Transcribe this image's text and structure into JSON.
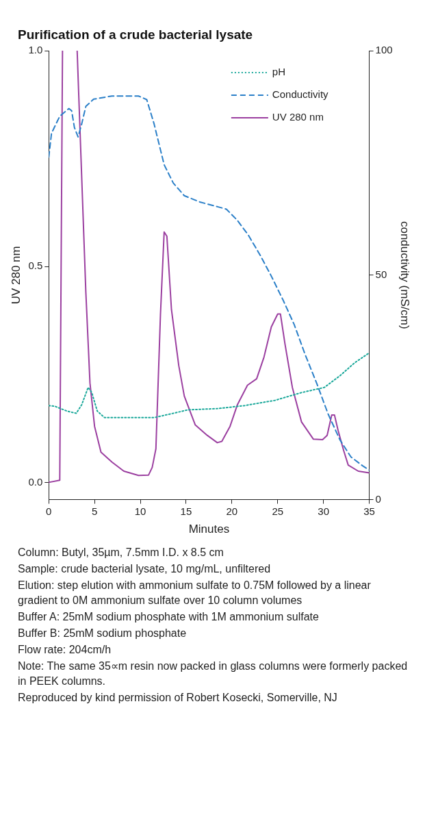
{
  "chart_data": {
    "type": "line",
    "title": "Purification of a crude bacterial lysate",
    "xlabel": "Minutes",
    "ylabel": "UV 280 nm",
    "y2label": "conductivity (mS/cm)",
    "xlim": [
      0,
      35
    ],
    "xticks": [
      0,
      5,
      10,
      15,
      20,
      25,
      30,
      35
    ],
    "ylim": [
      -0.04,
      1.0
    ],
    "yticks": [
      {
        "value": 0,
        "label": "0.0"
      },
      {
        "value": 0.5,
        "label": "0.5"
      },
      {
        "value": 1,
        "label": "1.0"
      }
    ],
    "y2lim": [
      0,
      100
    ],
    "y2ticks": [
      0,
      50,
      100
    ],
    "grid": false,
    "legend": "top right",
    "marker": "none",
    "series": [
      {
        "name": "pH",
        "color": "#1aa89a",
        "line_style": "dotted",
        "x": [
          0,
          0.7,
          2.0,
          3.0,
          3.6,
          4.3,
          4.7,
          5.3,
          6.1,
          8.6,
          11.5,
          13.6,
          15.2,
          18.5,
          21.4,
          24.7,
          27.6,
          30.1,
          31.8,
          33.4,
          35
        ],
        "values": [
          0.178,
          0.176,
          0.165,
          0.16,
          0.18,
          0.22,
          0.208,
          0.165,
          0.15,
          0.15,
          0.15,
          0.16,
          0.168,
          0.171,
          0.178,
          0.19,
          0.208,
          0.22,
          0.247,
          0.277,
          0.3
        ]
      },
      {
        "name": "Conductivity",
        "color": "#2a7fc8",
        "line_style": "dashed",
        "axis": "y2",
        "x": [
          0,
          0.3,
          1.2,
          2.2,
          2.5,
          2.8,
          3.2,
          3.6,
          4.05,
          4.9,
          6.9,
          9.8,
          10.7,
          11.5,
          12.6,
          13.6,
          14.8,
          16.5,
          18.5,
          19.4,
          20.6,
          21.8,
          23.1,
          24.3,
          25.6,
          26.8,
          28.0,
          29.3,
          30.5,
          31.8,
          33.0,
          34.3,
          35
        ],
        "values": [
          76.3,
          81.6,
          85.4,
          87.1,
          86.6,
          82.9,
          80.8,
          83.7,
          87.6,
          89.2,
          89.9,
          89.9,
          89.1,
          83.7,
          74.6,
          70.5,
          67.7,
          66.3,
          65.2,
          64.7,
          62.2,
          58.9,
          54.4,
          49.8,
          44.4,
          39,
          32.3,
          25.7,
          19.1,
          13.3,
          9.5,
          7.5,
          6.6
        ]
      },
      {
        "name": "UV 280 nm",
        "color": "#9b3fa0",
        "line_style": "solid",
        "x": [
          0,
          1.2,
          1.5,
          2.3,
          3.1,
          4.05,
          4.5,
          5.0,
          5.7,
          6.9,
          8.2,
          9.8,
          10.9,
          11.3,
          11.7,
          12.2,
          12.6,
          12.9,
          13.4,
          14.2,
          14.8,
          16.0,
          17.3,
          18.4,
          18.9,
          19.8,
          20.6,
          21.7,
          22.7,
          23.5,
          24.3,
          25.0,
          25.3,
          25.8,
          26.6,
          27.6,
          28.9,
          29.9,
          30.4,
          30.9,
          31.2,
          31.6,
          32.2,
          32.7,
          33.8,
          35
        ],
        "values": [
          0,
          0.005,
          1.0,
          null,
          1.0,
          0.44,
          0.23,
          0.13,
          0.07,
          0.047,
          0.026,
          0.016,
          0.017,
          0.035,
          0.078,
          0.39,
          0.58,
          0.57,
          0.4,
          0.27,
          0.2,
          0.133,
          0.109,
          0.092,
          0.095,
          0.13,
          0.18,
          0.225,
          0.24,
          0.29,
          0.36,
          0.39,
          0.39,
          0.32,
          0.22,
          0.14,
          0.1,
          0.099,
          0.109,
          0.156,
          0.156,
          0.12,
          0.074,
          0.04,
          0.026,
          0.022
        ]
      }
    ],
    "annotations": [
      "Column: Butyl, 35µm, 7.5mm I.D. x 8.5 cm",
      "Sample: crude bacterial lysate, 10 mg/mL, unfiltered",
      "Elution: step elution with ammonium sulfate to 0.75M followed by a linear gradient to 0M ammonium sulfate over 10 column volumes",
      "Buffer A: 25mM sodium phosphate with 1M ammonium sulfate",
      "Buffer B: 25mM sodium phosphate",
      "Flow rate: 204cm/h",
      "Note: The same 35∝m resin now packed in glass columns were formerly packed in PEEK columns.",
      "Reproduced by kind permission of Robert Kosecki, Somerville, NJ"
    ]
  }
}
